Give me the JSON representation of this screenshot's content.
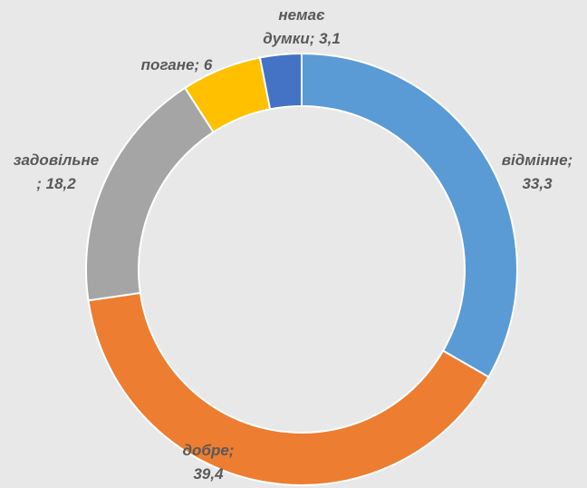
{
  "chart_data": {
    "type": "donut",
    "values": [
      33.3,
      39.4,
      18.2,
      6,
      3.1
    ],
    "value_labels": [
      "відмінне; 33,3",
      "добре; 39,4",
      "задовільне; 18,2",
      "погане; 6",
      "немає думки; 3,1"
    ],
    "colors": [
      "#5b9bd5",
      "#ed7d31",
      "#a5a5a5",
      "#ffc000",
      "#4472c4"
    ]
  }
}
